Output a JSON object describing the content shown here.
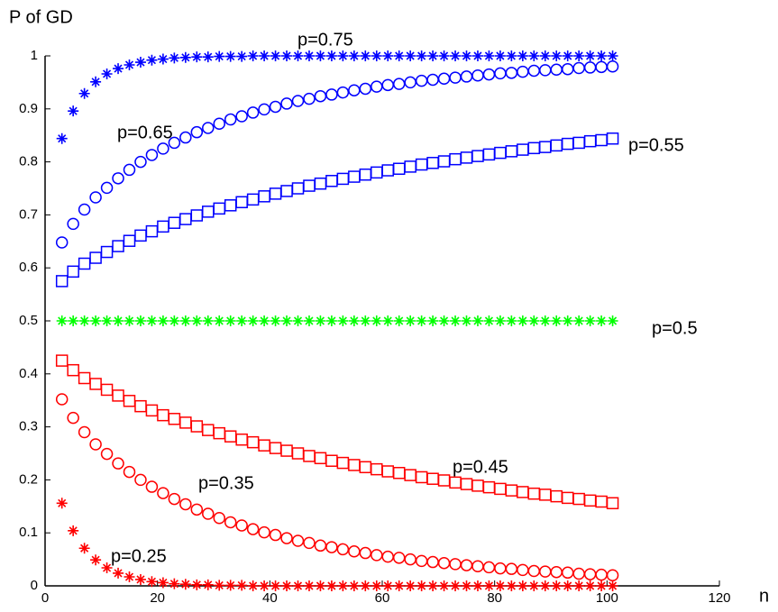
{
  "chart_data": {
    "type": "scatter",
    "x_label": "n",
    "y_label": "P of GD",
    "x": [
      3,
      5,
      7,
      9,
      11,
      13,
      15,
      17,
      19,
      21,
      23,
      25,
      27,
      29,
      31,
      33,
      35,
      37,
      39,
      41,
      43,
      45,
      47,
      49,
      51,
      53,
      55,
      57,
      59,
      61,
      63,
      65,
      67,
      69,
      71,
      73,
      75,
      77,
      79,
      81,
      83,
      85,
      87,
      89,
      91,
      93,
      95,
      97,
      99,
      101
    ],
    "xlim": [
      0,
      120
    ],
    "xticks": [
      0,
      20,
      40,
      60,
      80,
      100,
      120
    ],
    "ylim": [
      0,
      1
    ],
    "yticks": [
      0,
      0.1,
      0.2,
      0.3,
      0.4,
      0.5,
      0.6,
      0.7,
      0.8,
      0.9,
      1
    ],
    "series": [
      {
        "name": "p=0.75",
        "color": "#0000ff",
        "marker": "star",
        "values": [
          0.844,
          0.896,
          0.929,
          0.951,
          0.966,
          0.976,
          0.983,
          0.988,
          0.992,
          0.994,
          0.996,
          0.997,
          0.998,
          0.998,
          0.999,
          0.999,
          0.999,
          1,
          1,
          1,
          1,
          1,
          1,
          1,
          1,
          1,
          1,
          1,
          1,
          1,
          1,
          1,
          1,
          1,
          1,
          1,
          1,
          1,
          1,
          1,
          1,
          1,
          1,
          1,
          1,
          1,
          1,
          1,
          1,
          1
        ]
      },
      {
        "name": "p=0.65",
        "color": "#0000ff",
        "marker": "circle",
        "values": [
          0.648,
          0.683,
          0.71,
          0.733,
          0.751,
          0.769,
          0.785,
          0.8,
          0.813,
          0.825,
          0.836,
          0.846,
          0.856,
          0.864,
          0.872,
          0.88,
          0.886,
          0.893,
          0.899,
          0.904,
          0.91,
          0.915,
          0.919,
          0.924,
          0.927,
          0.931,
          0.935,
          0.938,
          0.942,
          0.945,
          0.947,
          0.95,
          0.953,
          0.955,
          0.957,
          0.959,
          0.961,
          0.963,
          0.965,
          0.967,
          0.968,
          0.97,
          0.972,
          0.973,
          0.974,
          0.975,
          0.977,
          0.978,
          0.979,
          0.98
        ]
      },
      {
        "name": "p=0.55",
        "color": "#0000ff",
        "marker": "square",
        "values": [
          0.575,
          0.593,
          0.608,
          0.619,
          0.63,
          0.641,
          0.651,
          0.661,
          0.669,
          0.678,
          0.685,
          0.692,
          0.699,
          0.706,
          0.712,
          0.718,
          0.724,
          0.729,
          0.735,
          0.74,
          0.745,
          0.75,
          0.755,
          0.759,
          0.764,
          0.768,
          0.772,
          0.776,
          0.78,
          0.784,
          0.787,
          0.791,
          0.795,
          0.798,
          0.801,
          0.805,
          0.808,
          0.811,
          0.814,
          0.817,
          0.82,
          0.823,
          0.826,
          0.828,
          0.831,
          0.834,
          0.836,
          0.839,
          0.841,
          0.844
        ]
      },
      {
        "name": "p=0.5",
        "color": "#00ff00",
        "marker": "star",
        "values": [
          0.5,
          0.5,
          0.5,
          0.5,
          0.5,
          0.5,
          0.5,
          0.5,
          0.5,
          0.5,
          0.5,
          0.5,
          0.5,
          0.5,
          0.5,
          0.5,
          0.5,
          0.5,
          0.5,
          0.5,
          0.5,
          0.5,
          0.5,
          0.5,
          0.5,
          0.5,
          0.5,
          0.5,
          0.5,
          0.5,
          0.5,
          0.5,
          0.5,
          0.5,
          0.5,
          0.5,
          0.5,
          0.5,
          0.5,
          0.5,
          0.5,
          0.5,
          0.5,
          0.5,
          0.5,
          0.5,
          0.5,
          0.5,
          0.5,
          0.5
        ]
      },
      {
        "name": "p=0.45",
        "color": "#ff0000",
        "marker": "square",
        "values": [
          0.425,
          0.407,
          0.392,
          0.381,
          0.37,
          0.359,
          0.349,
          0.339,
          0.331,
          0.322,
          0.315,
          0.308,
          0.301,
          0.294,
          0.288,
          0.282,
          0.276,
          0.271,
          0.265,
          0.26,
          0.255,
          0.25,
          0.245,
          0.241,
          0.236,
          0.232,
          0.228,
          0.224,
          0.22,
          0.216,
          0.213,
          0.209,
          0.205,
          0.202,
          0.199,
          0.195,
          0.192,
          0.189,
          0.186,
          0.183,
          0.18,
          0.177,
          0.174,
          0.172,
          0.169,
          0.166,
          0.164,
          0.161,
          0.159,
          0.156
        ]
      },
      {
        "name": "p=0.35",
        "color": "#ff0000",
        "marker": "circle",
        "values": [
          0.352,
          0.317,
          0.29,
          0.267,
          0.249,
          0.231,
          0.215,
          0.2,
          0.187,
          0.175,
          0.164,
          0.154,
          0.144,
          0.136,
          0.128,
          0.12,
          0.114,
          0.107,
          0.101,
          0.096,
          0.09,
          0.085,
          0.081,
          0.076,
          0.073,
          0.069,
          0.065,
          0.062,
          0.058,
          0.055,
          0.053,
          0.05,
          0.047,
          0.045,
          0.043,
          0.041,
          0.039,
          0.037,
          0.035,
          0.033,
          0.032,
          0.03,
          0.028,
          0.027,
          0.026,
          0.025,
          0.023,
          0.022,
          0.021,
          0.02
        ]
      },
      {
        "name": "p=0.25",
        "color": "#ff0000",
        "marker": "star",
        "values": [
          0.156,
          0.104,
          0.071,
          0.049,
          0.034,
          0.024,
          0.017,
          0.012,
          0.008,
          0.006,
          0.004,
          0.003,
          0.002,
          0.002,
          0.001,
          0.001,
          0.001,
          0,
          0,
          0,
          0,
          0,
          0,
          0,
          0,
          0,
          0,
          0,
          0,
          0,
          0,
          0,
          0,
          0,
          0,
          0,
          0,
          0,
          0,
          0,
          0,
          0,
          0,
          0,
          0,
          0,
          0,
          0,
          0,
          0
        ]
      }
    ]
  }
}
